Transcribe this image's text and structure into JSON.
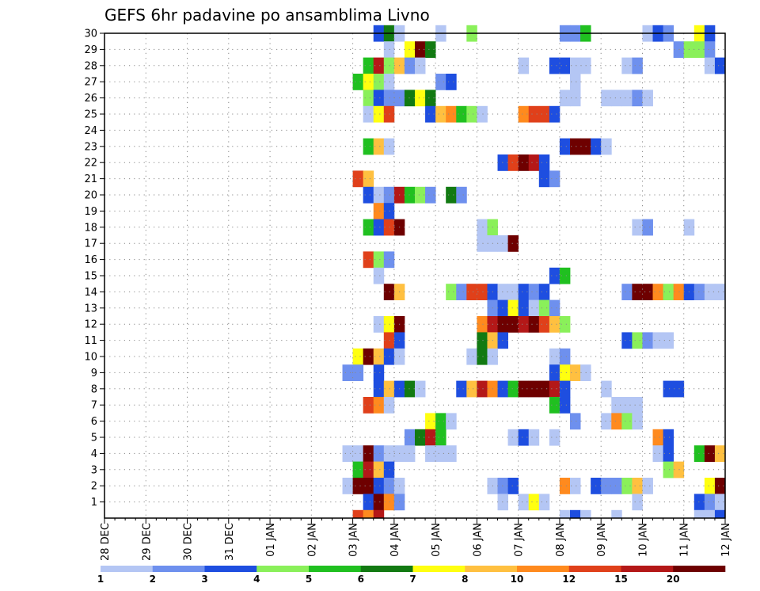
{
  "chart_data": {
    "type": "heatmap",
    "title": "GEFS 6hr padavine po ansamblima Livno",
    "x_tick_labels": [
      "28 DEC",
      "29 DEC",
      "30 DEC",
      "31 DEC",
      "01 JAN",
      "02 JAN",
      "03 JAN",
      "04 JAN",
      "05 JAN",
      "06 JAN",
      "07 JAN",
      "08 JAN",
      "09 JAN",
      "10 JAN",
      "11 JAN",
      "12 JAN"
    ],
    "y_tick_labels": [
      "1",
      "2",
      "3",
      "4",
      "5",
      "6",
      "7",
      "8",
      "9",
      "10",
      "11",
      "12",
      "13",
      "14",
      "15",
      "16",
      "17",
      "18",
      "19",
      "20",
      "21",
      "22",
      "23",
      "24",
      "25",
      "26",
      "27",
      "28",
      "29",
      "30"
    ],
    "ylim": [
      0,
      30
    ],
    "x_steps": 60,
    "steps_per_day": 4,
    "grid": true,
    "legend": {
      "position": "bottom",
      "labels": [
        "1",
        "2",
        "3",
        "4",
        "5",
        "6",
        "7",
        "8",
        "10",
        "12",
        "15",
        "20"
      ],
      "colors": [
        "#b4c6f4",
        "#6e90ee",
        "#1e4ee0",
        "#8af05a",
        "#20c020",
        "#127a12",
        "#ffff10",
        "#ffc040",
        "#ff8a1e",
        "#e0401a",
        "#b41818",
        "#6e0000"
      ]
    },
    "cells": [
      [
        30,
        26,
        3
      ],
      [
        30,
        27,
        6
      ],
      [
        30,
        28,
        1
      ],
      [
        30,
        32,
        1
      ],
      [
        30,
        35,
        4
      ],
      [
        30,
        44,
        2
      ],
      [
        30,
        45,
        2
      ],
      [
        30,
        46,
        5
      ],
      [
        30,
        52,
        1
      ],
      [
        30,
        53,
        3
      ],
      [
        30,
        54,
        2
      ],
      [
        30,
        57,
        7
      ],
      [
        30,
        58,
        3
      ],
      [
        29,
        27,
        1
      ],
      [
        29,
        29,
        7
      ],
      [
        29,
        30,
        12
      ],
      [
        29,
        31,
        6
      ],
      [
        29,
        55,
        2
      ],
      [
        29,
        56,
        4
      ],
      [
        29,
        57,
        4
      ],
      [
        29,
        58,
        2
      ],
      [
        28,
        25,
        5
      ],
      [
        28,
        26,
        11
      ],
      [
        28,
        27,
        4
      ],
      [
        28,
        28,
        8
      ],
      [
        28,
        29,
        2
      ],
      [
        28,
        30,
        1
      ],
      [
        28,
        40,
        1
      ],
      [
        28,
        43,
        3
      ],
      [
        28,
        44,
        3
      ],
      [
        28,
        45,
        1
      ],
      [
        28,
        46,
        1
      ],
      [
        28,
        50,
        1
      ],
      [
        28,
        51,
        2
      ],
      [
        28,
        58,
        1
      ],
      [
        28,
        59,
        3
      ],
      [
        27,
        24,
        5
      ],
      [
        27,
        25,
        7
      ],
      [
        27,
        26,
        4
      ],
      [
        27,
        27,
        1
      ],
      [
        27,
        32,
        2
      ],
      [
        27,
        33,
        3
      ],
      [
        27,
        45,
        1
      ],
      [
        26,
        25,
        4
      ],
      [
        26,
        26,
        3
      ],
      [
        26,
        27,
        2
      ],
      [
        26,
        28,
        2
      ],
      [
        26,
        29,
        6
      ],
      [
        26,
        30,
        7
      ],
      [
        26,
        31,
        6
      ],
      [
        26,
        44,
        1
      ],
      [
        26,
        45,
        1
      ],
      [
        26,
        48,
        1
      ],
      [
        26,
        49,
        1
      ],
      [
        26,
        50,
        1
      ],
      [
        26,
        51,
        2
      ],
      [
        26,
        52,
        1
      ],
      [
        25,
        25,
        1
      ],
      [
        25,
        26,
        7
      ],
      [
        25,
        27,
        10
      ],
      [
        25,
        31,
        3
      ],
      [
        25,
        32,
        8
      ],
      [
        25,
        33,
        9
      ],
      [
        25,
        34,
        5
      ],
      [
        25,
        35,
        4
      ],
      [
        25,
        36,
        1
      ],
      [
        25,
        40,
        9
      ],
      [
        25,
        41,
        10
      ],
      [
        25,
        42,
        10
      ],
      [
        25,
        43,
        3
      ],
      [
        23,
        25,
        5
      ],
      [
        23,
        26,
        8
      ],
      [
        23,
        27,
        1
      ],
      [
        23,
        44,
        3
      ],
      [
        23,
        45,
        12
      ],
      [
        23,
        46,
        12
      ],
      [
        23,
        47,
        3
      ],
      [
        23,
        48,
        1
      ],
      [
        22,
        38,
        3
      ],
      [
        22,
        39,
        10
      ],
      [
        22,
        40,
        12
      ],
      [
        22,
        41,
        11
      ],
      [
        22,
        42,
        3
      ],
      [
        21,
        24,
        10
      ],
      [
        21,
        25,
        8
      ],
      [
        21,
        42,
        3
      ],
      [
        21,
        43,
        2
      ],
      [
        20,
        25,
        3
      ],
      [
        20,
        26,
        1
      ],
      [
        20,
        27,
        2
      ],
      [
        20,
        28,
        11
      ],
      [
        20,
        29,
        5
      ],
      [
        20,
        30,
        4
      ],
      [
        20,
        31,
        2
      ],
      [
        20,
        33,
        6
      ],
      [
        20,
        34,
        2
      ],
      [
        19,
        26,
        9
      ],
      [
        19,
        27,
        3
      ],
      [
        18,
        25,
        5
      ],
      [
        18,
        26,
        3
      ],
      [
        18,
        27,
        10
      ],
      [
        18,
        28,
        12
      ],
      [
        18,
        36,
        1
      ],
      [
        18,
        37,
        4
      ],
      [
        18,
        51,
        1
      ],
      [
        18,
        52,
        2
      ],
      [
        18,
        56,
        1
      ],
      [
        17,
        36,
        1
      ],
      [
        17,
        37,
        1
      ],
      [
        17,
        38,
        1
      ],
      [
        17,
        39,
        12
      ],
      [
        16,
        25,
        10
      ],
      [
        16,
        26,
        4
      ],
      [
        16,
        27,
        2
      ],
      [
        15,
        26,
        1
      ],
      [
        15,
        43,
        3
      ],
      [
        15,
        44,
        5
      ],
      [
        14,
        27,
        12
      ],
      [
        14,
        28,
        8
      ],
      [
        14,
        33,
        4
      ],
      [
        14,
        34,
        2
      ],
      [
        14,
        35,
        10
      ],
      [
        14,
        36,
        10
      ],
      [
        14,
        37,
        3
      ],
      [
        14,
        38,
        1
      ],
      [
        14,
        39,
        1
      ],
      [
        14,
        40,
        3
      ],
      [
        14,
        41,
        2
      ],
      [
        14,
        42,
        3
      ],
      [
        14,
        50,
        2
      ],
      [
        14,
        51,
        12
      ],
      [
        14,
        52,
        12
      ],
      [
        14,
        53,
        9
      ],
      [
        14,
        54,
        4
      ],
      [
        14,
        55,
        9
      ],
      [
        14,
        56,
        3
      ],
      [
        14,
        57,
        2
      ],
      [
        14,
        58,
        1
      ],
      [
        14,
        59,
        1
      ],
      [
        13,
        37,
        2
      ],
      [
        13,
        38,
        3
      ],
      [
        13,
        39,
        7
      ],
      [
        13,
        40,
        3
      ],
      [
        13,
        41,
        1
      ],
      [
        13,
        42,
        4
      ],
      [
        13,
        43,
        2
      ],
      [
        12,
        26,
        1
      ],
      [
        12,
        27,
        7
      ],
      [
        12,
        28,
        12
      ],
      [
        12,
        36,
        9
      ],
      [
        12,
        37,
        11
      ],
      [
        12,
        38,
        12
      ],
      [
        12,
        39,
        12
      ],
      [
        12,
        40,
        11
      ],
      [
        12,
        41,
        12
      ],
      [
        12,
        42,
        10
      ],
      [
        12,
        43,
        8
      ],
      [
        12,
        44,
        4
      ],
      [
        11,
        27,
        10
      ],
      [
        11,
        28,
        3
      ],
      [
        11,
        36,
        6
      ],
      [
        11,
        37,
        8
      ],
      [
        11,
        38,
        3
      ],
      [
        11,
        50,
        3
      ],
      [
        11,
        51,
        4
      ],
      [
        11,
        52,
        2
      ],
      [
        11,
        53,
        1
      ],
      [
        11,
        54,
        1
      ],
      [
        10,
        24,
        7
      ],
      [
        10,
        25,
        12
      ],
      [
        10,
        26,
        8
      ],
      [
        10,
        27,
        3
      ],
      [
        10,
        28,
        1
      ],
      [
        10,
        35,
        1
      ],
      [
        10,
        36,
        6
      ],
      [
        10,
        37,
        1
      ],
      [
        10,
        43,
        1
      ],
      [
        10,
        44,
        2
      ],
      [
        9,
        23,
        2
      ],
      [
        9,
        24,
        2
      ],
      [
        9,
        26,
        3
      ],
      [
        9,
        43,
        3
      ],
      [
        9,
        44,
        7
      ],
      [
        9,
        45,
        8
      ],
      [
        9,
        46,
        1
      ],
      [
        8,
        26,
        3
      ],
      [
        8,
        27,
        8
      ],
      [
        8,
        28,
        3
      ],
      [
        8,
        29,
        6
      ],
      [
        8,
        30,
        1
      ],
      [
        8,
        34,
        3
      ],
      [
        8,
        35,
        8
      ],
      [
        8,
        36,
        11
      ],
      [
        8,
        37,
        9
      ],
      [
        8,
        38,
        3
      ],
      [
        8,
        39,
        5
      ],
      [
        8,
        40,
        12
      ],
      [
        8,
        41,
        12
      ],
      [
        8,
        42,
        12
      ],
      [
        8,
        43,
        11
      ],
      [
        8,
        44,
        3
      ],
      [
        8,
        48,
        1
      ],
      [
        8,
        54,
        3
      ],
      [
        8,
        55,
        3
      ],
      [
        7,
        25,
        10
      ],
      [
        7,
        26,
        9
      ],
      [
        7,
        27,
        1
      ],
      [
        7,
        43,
        5
      ],
      [
        7,
        44,
        3
      ],
      [
        7,
        49,
        1
      ],
      [
        7,
        50,
        1
      ],
      [
        7,
        51,
        1
      ],
      [
        6,
        31,
        7
      ],
      [
        6,
        32,
        5
      ],
      [
        6,
        33,
        1
      ],
      [
        6,
        45,
        2
      ],
      [
        6,
        48,
        1
      ],
      [
        6,
        49,
        9
      ],
      [
        6,
        50,
        4
      ],
      [
        6,
        51,
        1
      ],
      [
        5,
        29,
        2
      ],
      [
        5,
        30,
        6
      ],
      [
        5,
        31,
        11
      ],
      [
        5,
        32,
        5
      ],
      [
        5,
        39,
        1
      ],
      [
        5,
        40,
        3
      ],
      [
        5,
        41,
        1
      ],
      [
        5,
        43,
        1
      ],
      [
        5,
        53,
        9
      ],
      [
        5,
        54,
        3
      ],
      [
        4,
        23,
        1
      ],
      [
        4,
        24,
        1
      ],
      [
        4,
        25,
        12
      ],
      [
        4,
        26,
        2
      ],
      [
        4,
        27,
        1
      ],
      [
        4,
        28,
        1
      ],
      [
        4,
        29,
        1
      ],
      [
        4,
        31,
        1
      ],
      [
        4,
        32,
        1
      ],
      [
        4,
        33,
        1
      ],
      [
        4,
        53,
        1
      ],
      [
        4,
        54,
        3
      ],
      [
        4,
        57,
        5
      ],
      [
        4,
        58,
        12
      ],
      [
        4,
        59,
        8
      ],
      [
        3,
        24,
        5
      ],
      [
        3,
        25,
        11
      ],
      [
        3,
        26,
        8
      ],
      [
        3,
        27,
        3
      ],
      [
        3,
        54,
        4
      ],
      [
        3,
        55,
        8
      ],
      [
        2,
        23,
        1
      ],
      [
        2,
        24,
        12
      ],
      [
        2,
        25,
        12
      ],
      [
        2,
        26,
        3
      ],
      [
        2,
        27,
        2
      ],
      [
        2,
        28,
        1
      ],
      [
        2,
        37,
        1
      ],
      [
        2,
        38,
        2
      ],
      [
        2,
        39,
        3
      ],
      [
        2,
        44,
        9
      ],
      [
        2,
        45,
        1
      ],
      [
        2,
        47,
        3
      ],
      [
        2,
        48,
        2
      ],
      [
        2,
        49,
        2
      ],
      [
        2,
        50,
        4
      ],
      [
        2,
        51,
        8
      ],
      [
        2,
        52,
        1
      ],
      [
        2,
        58,
        7
      ],
      [
        2,
        59,
        12
      ],
      [
        1,
        25,
        3
      ],
      [
        1,
        26,
        12
      ],
      [
        1,
        27,
        9
      ],
      [
        1,
        28,
        2
      ],
      [
        1,
        38,
        1
      ],
      [
        1,
        40,
        1
      ],
      [
        1,
        41,
        7
      ],
      [
        1,
        42,
        1
      ],
      [
        1,
        51,
        1
      ],
      [
        1,
        57,
        3
      ],
      [
        1,
        58,
        2
      ],
      [
        1,
        59,
        1
      ]
    ],
    "bottom_row_cells": [
      [
        24,
        10
      ],
      [
        25,
        9
      ],
      [
        26,
        11
      ],
      [
        44,
        1
      ],
      [
        45,
        3
      ],
      [
        46,
        1
      ],
      [
        49,
        1
      ],
      [
        57,
        1
      ],
      [
        58,
        1
      ],
      [
        59,
        3
      ]
    ]
  }
}
